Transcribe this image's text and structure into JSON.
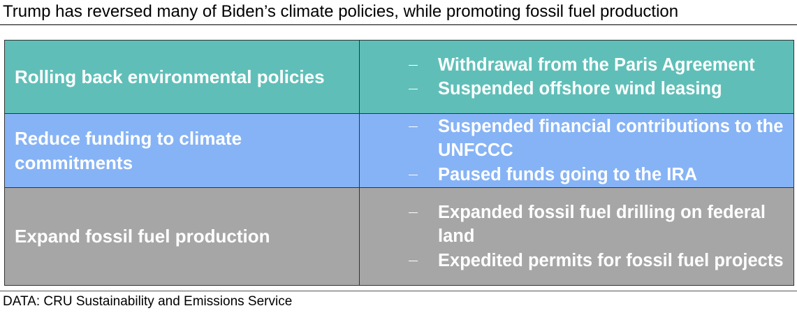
{
  "title": "Trump has reversed many of Biden’s climate policies, while promoting fossil fuel production",
  "table": {
    "rows": [
      {
        "label": "Rolling back environmental policies",
        "items": [
          "Withdrawal from the Paris Agreement",
          "Suspended offshore wind leasing"
        ]
      },
      {
        "label": "Reduce funding to climate commitments",
        "items": [
          "Suspended financial contributions to the UNFCCC",
          "Paused funds going to the IRA"
        ]
      },
      {
        "label": "Expand fossil fuel production",
        "items": [
          "Expanded fossil fuel drilling on federal land",
          "Expedited permits for fossil fuel projects"
        ]
      }
    ]
  },
  "source": "DATA: CRU Sustainability and Emissions Service"
}
